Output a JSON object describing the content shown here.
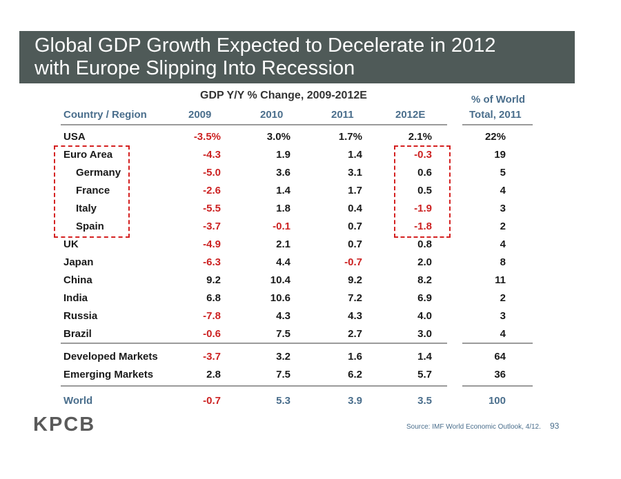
{
  "slide": {
    "title_line1": "Global GDP Growth Expected to Decelerate in 2012",
    "title_line2": "with Europe Slipping Into Recession",
    "table_title": "GDP Y/Y % Change, 2009-2012E",
    "share_title": "% of World",
    "logo": "KPCB",
    "source": "Source: IMF World Economic Outlook, 4/12.",
    "page_number": "93",
    "colors": {
      "title_bar": "#4f5a58",
      "header_text": "#4a6e8c",
      "negative": "#cc2222",
      "highlight_box": "#d42020"
    }
  },
  "table": {
    "headers": [
      "Country / Region",
      "2009",
      "2010",
      "2011",
      "2012E",
      "Total, 2011"
    ],
    "rows": [
      {
        "name": "USA",
        "v2009": "-3.5%",
        "v2010": "3.0%",
        "v2011": "1.7%",
        "v2012": "2.1%",
        "share": "22%"
      },
      {
        "name": "Euro Area",
        "v2009": "-4.3",
        "v2010": "1.9",
        "v2011": "1.4",
        "v2012": "-0.3",
        "share": "19"
      },
      {
        "name": "Germany",
        "v2009": "-5.0",
        "v2010": "3.6",
        "v2011": "3.1",
        "v2012": "0.6",
        "share": "5"
      },
      {
        "name": "France",
        "v2009": "-2.6",
        "v2010": "1.4",
        "v2011": "1.7",
        "v2012": "0.5",
        "share": "4"
      },
      {
        "name": "Italy",
        "v2009": "-5.5",
        "v2010": "1.8",
        "v2011": "0.4",
        "v2012": "-1.9",
        "share": "3"
      },
      {
        "name": "Spain",
        "v2009": "-3.7",
        "v2010": "-0.1",
        "v2011": "0.7",
        "v2012": "-1.8",
        "share": "2"
      },
      {
        "name": "UK",
        "v2009": "-4.9",
        "v2010": "2.1",
        "v2011": "0.7",
        "v2012": "0.8",
        "share": "4"
      },
      {
        "name": "Japan",
        "v2009": "-6.3",
        "v2010": "4.4",
        "v2011": "-0.7",
        "v2012": "2.0",
        "share": "8"
      },
      {
        "name": "China",
        "v2009": "9.2",
        "v2010": "10.4",
        "v2011": "9.2",
        "v2012": "8.2",
        "share": "11"
      },
      {
        "name": "India",
        "v2009": "6.8",
        "v2010": "10.6",
        "v2011": "7.2",
        "v2012": "6.9",
        "share": "2"
      },
      {
        "name": "Russia",
        "v2009": "-7.8",
        "v2010": "4.3",
        "v2011": "4.3",
        "v2012": "4.0",
        "share": "3"
      },
      {
        "name": "Brazil",
        "v2009": "-0.6",
        "v2010": "7.5",
        "v2011": "2.7",
        "v2012": "3.0",
        "share": "4"
      }
    ],
    "aggregates": [
      {
        "name": "Developed Markets",
        "v2009": "-3.7",
        "v2010": "3.2",
        "v2011": "1.6",
        "v2012": "1.4",
        "share": "64"
      },
      {
        "name": "Emerging Markets",
        "v2009": "2.8",
        "v2010": "7.5",
        "v2011": "6.2",
        "v2012": "5.7",
        "share": "36"
      }
    ],
    "world": {
      "name": "World",
      "v2009": "-0.7",
      "v2010": "5.3",
      "v2011": "3.9",
      "v2012": "3.5",
      "share": "100"
    }
  }
}
